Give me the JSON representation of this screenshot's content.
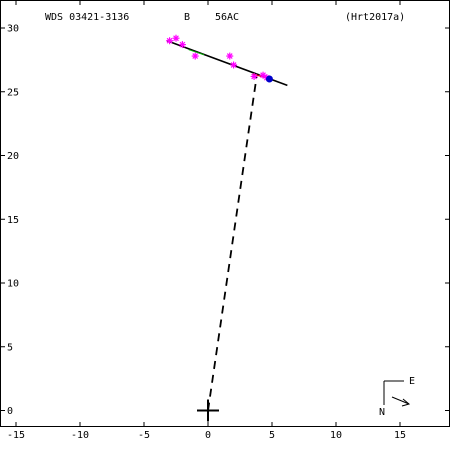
{
  "header": {
    "wds_id": "WDS 03421-3136",
    "component_b": "B",
    "pair": "56AC",
    "reference": "(Hrt2017a)"
  },
  "chart_data": {
    "type": "scatter",
    "title": "",
    "xlabel": "",
    "ylabel": "",
    "xlim": [
      -15,
      18
    ],
    "ylim": [
      -1.5,
      30.5
    ],
    "x_ticks": [
      -15,
      -10,
      -5,
      0,
      5,
      10,
      15
    ],
    "y_ticks": [
      0,
      5,
      10,
      15,
      20,
      25,
      30
    ],
    "x_tick_labels": [
      "-15",
      "-10",
      "-5",
      "0",
      "5",
      "10",
      "15"
    ],
    "y_tick_labels": [
      "0",
      "5",
      "10",
      "15",
      "20",
      "25",
      "30"
    ],
    "grid": false,
    "primary": {
      "x": 0,
      "y": 0
    },
    "orbit_line": {
      "from": [
        -3.2,
        29.0
      ],
      "to": [
        6.2,
        25.5
      ]
    },
    "dashed_line": {
      "from": [
        0,
        0
      ],
      "to": [
        3.8,
        26.2
      ]
    },
    "observations": [
      {
        "x": -3.0,
        "y": 29.0
      },
      {
        "x": -2.5,
        "y": 29.2
      },
      {
        "x": -2.0,
        "y": 28.7
      },
      {
        "x": -1.0,
        "y": 27.8
      },
      {
        "x": 1.7,
        "y": 27.8
      },
      {
        "x": 2.0,
        "y": 27.1
      },
      {
        "x": 3.6,
        "y": 26.2
      },
      {
        "x": 4.3,
        "y": 26.3
      },
      {
        "x": 4.6,
        "y": 26.1
      }
    ],
    "latest_position": {
      "x": 4.8,
      "y": 26.0
    },
    "colors": {
      "observation": "#ff00ff",
      "latest": "#0000cc",
      "orbit": "#000000",
      "accent_red": "#cc0000",
      "accent_green": "#00aa00"
    }
  },
  "orientation": {
    "north_label": "N",
    "east_label": "E"
  }
}
